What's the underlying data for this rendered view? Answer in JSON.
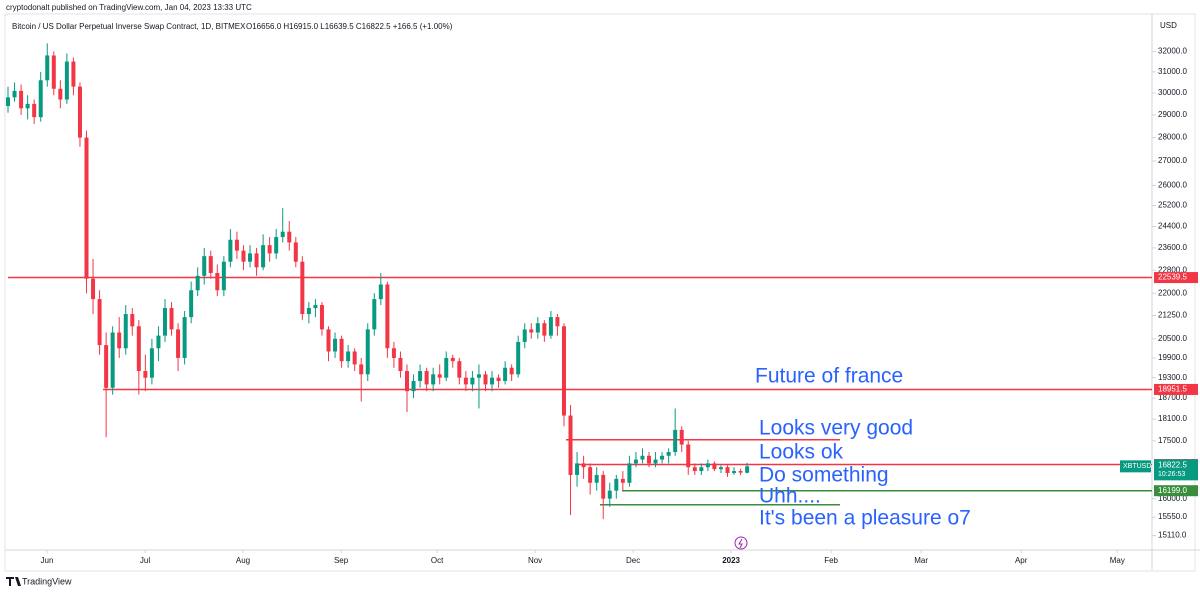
{
  "header": {
    "published": "cryptodonalt published on TradingView.com, Jan 04, 2023 13:33 UTC",
    "brand": "TradingView"
  },
  "chart_data": {
    "type": "candlestick",
    "title": "Bitcoin / US Dollar Perpetual Inverse Swap Contract, 1D, BITMEX",
    "subtitle": "O16656.0  H16915.0  L16639.5  C16822.5  +166.5 (+1.00%)",
    "y_axis_label": "USD",
    "log_scale": true,
    "series": [
      {
        "name": "XBTUSD",
        "up_color": "#089981",
        "down_color": "#f23645",
        "open": [
          29400,
          29800,
          30100,
          29300,
          29500,
          28900,
          30600,
          31800,
          30200,
          29700,
          31500,
          30300,
          28000,
          22500,
          21800,
          20300,
          19000,
          20700,
          20200,
          21300,
          20900,
          19500,
          19300,
          20200,
          20600,
          21500,
          20800,
          19900,
          21200,
          22100,
          22600,
          23300,
          22700,
          22100,
          23100,
          23900,
          23500,
          23100,
          23400,
          22900,
          23700,
          23400,
          24000,
          24200,
          23800,
          23100,
          21300,
          21500,
          21600,
          20800,
          20100,
          20500,
          19800,
          20100,
          19700,
          19400,
          20800,
          21800,
          22300,
          20200,
          19900,
          19500,
          18900,
          19200,
          19500,
          19100,
          19400,
          19300,
          19900,
          19800,
          19300,
          19100,
          19300,
          19400,
          19100,
          19300,
          19200,
          19600,
          19400,
          20400,
          20800,
          20700,
          21000,
          20600,
          21200,
          20900,
          18200,
          16600,
          16900,
          16800,
          16400,
          16600,
          16000,
          16200,
          16500,
          16400,
          16900,
          17000,
          17100,
          16900,
          17000,
          17100,
          17200,
          17800,
          17400,
          16800,
          16700,
          16800,
          16900,
          16750,
          16800,
          16650,
          16700,
          16656
        ],
        "high": [
          30300,
          30500,
          30400,
          29900,
          29700,
          31000,
          32400,
          32000,
          30600,
          31900,
          31700,
          30500,
          28300,
          23200,
          22100,
          20700,
          20900,
          21200,
          21600,
          21500,
          21100,
          20000,
          20500,
          20900,
          21800,
          21700,
          21000,
          21400,
          22400,
          22900,
          23600,
          23500,
          23000,
          23300,
          24300,
          24200,
          23700,
          23700,
          23600,
          24100,
          24000,
          24300,
          25100,
          24600,
          24000,
          23300,
          21700,
          21800,
          21700,
          20900,
          20700,
          20600,
          20300,
          20200,
          19900,
          21000,
          22000,
          22700,
          22400,
          20400,
          20100,
          19700,
          19400,
          19700,
          19600,
          19600,
          19700,
          20100,
          20000,
          19900,
          19500,
          19500,
          19700,
          19500,
          19500,
          19400,
          19800,
          19700,
          20600,
          21000,
          21000,
          21200,
          21100,
          21400,
          21300,
          21000,
          18500,
          17200,
          17100,
          16900,
          16800,
          16700,
          16400,
          16600,
          16700,
          17100,
          17200,
          17300,
          17200,
          17200,
          17200,
          17300,
          18400,
          17900,
          17500,
          16900,
          16900,
          17000,
          16950,
          16850,
          16850,
          16800,
          16760,
          16915
        ],
        "low": [
          29100,
          29600,
          29000,
          28800,
          28600,
          28700,
          30300,
          29900,
          29300,
          29500,
          29900,
          27600,
          22000,
          21300,
          20000,
          17600,
          18800,
          19900,
          20000,
          20600,
          18800,
          18900,
          19100,
          19800,
          20400,
          20600,
          19500,
          19700,
          21000,
          21900,
          22300,
          22500,
          21900,
          21900,
          22900,
          23200,
          22800,
          22900,
          22600,
          22800,
          23100,
          23200,
          23800,
          23500,
          22900,
          21100,
          21000,
          21200,
          20600,
          19800,
          19900,
          19600,
          19600,
          19500,
          18600,
          19200,
          20600,
          21600,
          19900,
          19600,
          19300,
          18300,
          18700,
          19000,
          18900,
          18900,
          19100,
          19200,
          19600,
          19100,
          18900,
          18900,
          18400,
          18900,
          18900,
          19000,
          19100,
          19200,
          19300,
          20200,
          20500,
          20500,
          20400,
          20500,
          20600,
          17900,
          15600,
          16300,
          16500,
          16100,
          16200,
          15500,
          15800,
          16000,
          16200,
          16300,
          16800,
          16900,
          16800,
          16800,
          16900,
          16900,
          17100,
          17200,
          16600,
          16600,
          16600,
          16700,
          16700,
          16650,
          16550,
          16600,
          16600,
          16639.5
        ],
        "close": [
          29800,
          30100,
          29300,
          29500,
          28900,
          30600,
          31800,
          30200,
          29700,
          31500,
          30300,
          28000,
          22500,
          21800,
          20300,
          19000,
          20700,
          20200,
          21300,
          20900,
          19500,
          19300,
          20200,
          20600,
          21500,
          20800,
          19900,
          21200,
          22100,
          22600,
          23300,
          22700,
          22100,
          23100,
          23900,
          23500,
          23100,
          23400,
          22900,
          23700,
          23400,
          24000,
          24200,
          23800,
          23100,
          21300,
          21500,
          21600,
          20800,
          20100,
          20500,
          19800,
          20100,
          19700,
          19400,
          20800,
          21800,
          22300,
          20200,
          19900,
          19500,
          18900,
          19200,
          19500,
          19100,
          19400,
          19300,
          19900,
          19800,
          19300,
          19100,
          19300,
          19400,
          19100,
          19300,
          19200,
          19600,
          19400,
          20400,
          20800,
          20700,
          21000,
          20600,
          21200,
          20900,
          18200,
          16600,
          16900,
          16800,
          16400,
          16600,
          16000,
          16200,
          16500,
          16400,
          16900,
          17000,
          17100,
          16900,
          17000,
          17100,
          17200,
          17800,
          17400,
          16800,
          16700,
          16800,
          16900,
          16750,
          16800,
          16650,
          16700,
          16660,
          16822.5
        ]
      }
    ],
    "countdown": "10:26:53",
    "xlim": [
      -0.46,
      174.9
    ],
    "xticks": [
      {
        "value": 5.96,
        "label": "Jun"
      },
      {
        "value": 20.95,
        "label": "Jul"
      },
      {
        "value": 35.93,
        "label": "Aug"
      },
      {
        "value": 50.92,
        "label": "Sep"
      },
      {
        "value": 65.6,
        "label": "Oct"
      },
      {
        "value": 80.58,
        "label": "Nov"
      },
      {
        "value": 95.57,
        "label": "Dec"
      },
      {
        "value": 110.55,
        "label": "2023"
      },
      {
        "value": 125.84,
        "label": "Feb"
      },
      {
        "value": 139.6,
        "label": "Mar"
      },
      {
        "value": 154.9,
        "label": "Apr"
      },
      {
        "value": 169.6,
        "label": "May"
      }
    ],
    "ylim": [
      14800,
      33700
    ],
    "yticks": [
      {
        "value": 32000,
        "label": "32000.0"
      },
      {
        "value": 31000,
        "label": "31000.0"
      },
      {
        "value": 30000,
        "label": "30000.0"
      },
      {
        "value": 29000,
        "label": "29000.0"
      },
      {
        "value": 28000,
        "label": "28000.0"
      },
      {
        "value": 27000,
        "label": "27000.0"
      },
      {
        "value": 26000,
        "label": "26000.0"
      },
      {
        "value": 25200,
        "label": "25200.0"
      },
      {
        "value": 24400,
        "label": "24400.0"
      },
      {
        "value": 23600,
        "label": "23600.0"
      },
      {
        "value": 22800,
        "label": "22800.0"
      },
      {
        "value": 22000,
        "label": "22000.0"
      },
      {
        "value": 21250,
        "label": "21250.0"
      },
      {
        "value": 20500,
        "label": "20500.0"
      },
      {
        "value": 19900,
        "label": "19900.0"
      },
      {
        "value": 19300,
        "label": "19300.0"
      },
      {
        "value": 18700,
        "label": "18700.0"
      },
      {
        "value": 18100,
        "label": "18100.0"
      },
      {
        "value": 17500,
        "label": "17500.0"
      },
      {
        "value": 16000,
        "label": "16000.0"
      },
      {
        "value": 15550,
        "label": "15550.0"
      },
      {
        "value": 15110,
        "label": "15110.0"
      }
    ],
    "levels": [
      {
        "value": 22539.5,
        "color": "#f23645",
        "price_tag": true
      },
      {
        "value": 18951.5,
        "color": "#f23645",
        "price_tag": true
      },
      {
        "value": 17530,
        "color": "#f23645"
      },
      {
        "value": 16869.5,
        "color": "#f23645",
        "price_tag": true
      },
      {
        "value": 16199,
        "label": "16199.0",
        "color": "#388e3c",
        "price_tag": true
      },
      {
        "value": 15850,
        "color": "#388e3c"
      }
    ],
    "annotations": [
      "Future of france",
      "Looks very good",
      "Looks ok",
      "Do something",
      "Uhh....",
      "It's been a pleasure o7"
    ],
    "annotation_color": "#2962ff"
  }
}
